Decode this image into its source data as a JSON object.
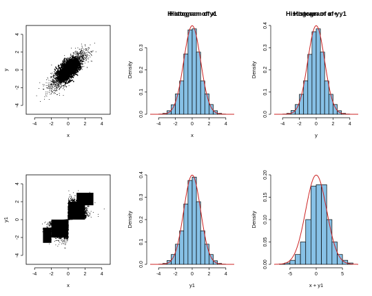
{
  "chart_data": [
    {
      "type": "scatter",
      "title": "",
      "xlabel": "x",
      "ylabel": "y",
      "xlim": [
        -5,
        5
      ],
      "ylim": [
        -5,
        5
      ],
      "x_ticks": [
        -4,
        -2,
        0,
        2,
        4
      ],
      "y_ticks": [
        -4,
        -2,
        0,
        2,
        4
      ],
      "correlation": 0.8,
      "distribution": "bivariate normal",
      "marker_color": "#000000"
    },
    {
      "type": "bar",
      "title": "Histogram of x",
      "xlabel": "x",
      "ylabel": "Density",
      "xlim": [
        -5,
        5
      ],
      "ylim": [
        0,
        0.4
      ],
      "x_ticks": [
        -4,
        -2,
        0,
        2,
        4
      ],
      "y_ticks": [
        0.0,
        0.1,
        0.2,
        0.3
      ],
      "bin_edges": [
        -4,
        -3.5,
        -3,
        -2.5,
        -2,
        -1.5,
        -1,
        -0.5,
        0,
        0.5,
        1,
        1.5,
        2,
        2.5,
        3,
        3.5,
        4
      ],
      "values": [
        0.001,
        0.004,
        0.016,
        0.043,
        0.092,
        0.15,
        0.272,
        0.38,
        0.385,
        0.28,
        0.15,
        0.092,
        0.044,
        0.016,
        0.004,
        0.001
      ],
      "curve": {
        "type": "normal density",
        "mean": 0,
        "sd": 1,
        "color": "#cc2222"
      },
      "bar_color": "#87c1e6"
    },
    {
      "type": "bar",
      "title": "Histogram of y",
      "xlabel": "y",
      "ylabel": "Density",
      "xlim": [
        -5,
        5
      ],
      "ylim": [
        0,
        0.4
      ],
      "x_ticks": [
        -4,
        -2,
        0,
        2,
        4
      ],
      "y_ticks": [
        0.0,
        0.1,
        0.2,
        0.3,
        0.4
      ],
      "bin_edges": [
        -4,
        -3.5,
        -3,
        -2.5,
        -2,
        -1.5,
        -1,
        -0.5,
        0,
        0.5,
        1,
        1.5,
        2,
        2.5,
        3,
        3.5,
        4
      ],
      "values": [
        0.001,
        0.004,
        0.017,
        0.044,
        0.09,
        0.151,
        0.27,
        0.372,
        0.385,
        0.28,
        0.15,
        0.09,
        0.044,
        0.016,
        0.004,
        0.001
      ],
      "curve": {
        "type": "normal density",
        "mean": 0,
        "sd": 1,
        "color": "#cc2222"
      },
      "bar_color": "#87c1e6"
    },
    {
      "type": "scatter",
      "title": "",
      "xlabel": "x",
      "ylabel": "y1",
      "xlim": [
        -5,
        5
      ],
      "ylim": [
        -5,
        5
      ],
      "x_ticks": [
        -4,
        -2,
        0,
        2,
        4
      ],
      "y_ticks": [
        -4,
        -2,
        0,
        2,
        4
      ],
      "pattern": "sign-matched quadrants with solid blocks from 0 to 2 and -2 to 0",
      "marker_color": "#000000"
    },
    {
      "type": "bar",
      "title": "Histogram of y1",
      "xlabel": "y1",
      "ylabel": "Density",
      "xlim": [
        -5,
        5
      ],
      "ylim": [
        0,
        0.4
      ],
      "x_ticks": [
        -4,
        -2,
        0,
        2,
        4
      ],
      "y_ticks": [
        0.0,
        0.1,
        0.2,
        0.3,
        0.4
      ],
      "bin_edges": [
        -4,
        -3.5,
        -3,
        -2.5,
        -2,
        -1.5,
        -1,
        -0.5,
        0,
        0.5,
        1,
        1.5,
        2,
        2.5,
        3,
        3.5,
        4
      ],
      "values": [
        0.001,
        0.004,
        0.017,
        0.044,
        0.09,
        0.15,
        0.27,
        0.375,
        0.39,
        0.28,
        0.15,
        0.09,
        0.044,
        0.016,
        0.004,
        0.001
      ],
      "curve": {
        "type": "normal density",
        "mean": 0,
        "sd": 1,
        "color": "#cc2222"
      },
      "bar_color": "#87c1e6"
    },
    {
      "type": "bar",
      "title": "Histogram of x + y1",
      "xlabel": "x + y1",
      "ylabel": "Density",
      "xlim": [
        -8,
        8
      ],
      "ylim": [
        0,
        0.2
      ],
      "x_ticks": [
        -5,
        0,
        5
      ],
      "y_ticks": [
        0.0,
        0.05,
        0.1,
        0.15,
        0.2
      ],
      "bin_edges": [
        -7,
        -6,
        -5,
        -4,
        -3,
        -2,
        -1,
        0,
        1,
        2,
        3,
        4,
        5,
        6,
        7
      ],
      "values": [
        0.001,
        0.003,
        0.009,
        0.022,
        0.05,
        0.1,
        0.175,
        0.178,
        0.178,
        0.1,
        0.05,
        0.022,
        0.009,
        0.003
      ],
      "curve": {
        "type": "normal density",
        "mean": 0,
        "sd": 2,
        "color": "#cc2222"
      },
      "bar_color": "#87c1e6"
    }
  ]
}
